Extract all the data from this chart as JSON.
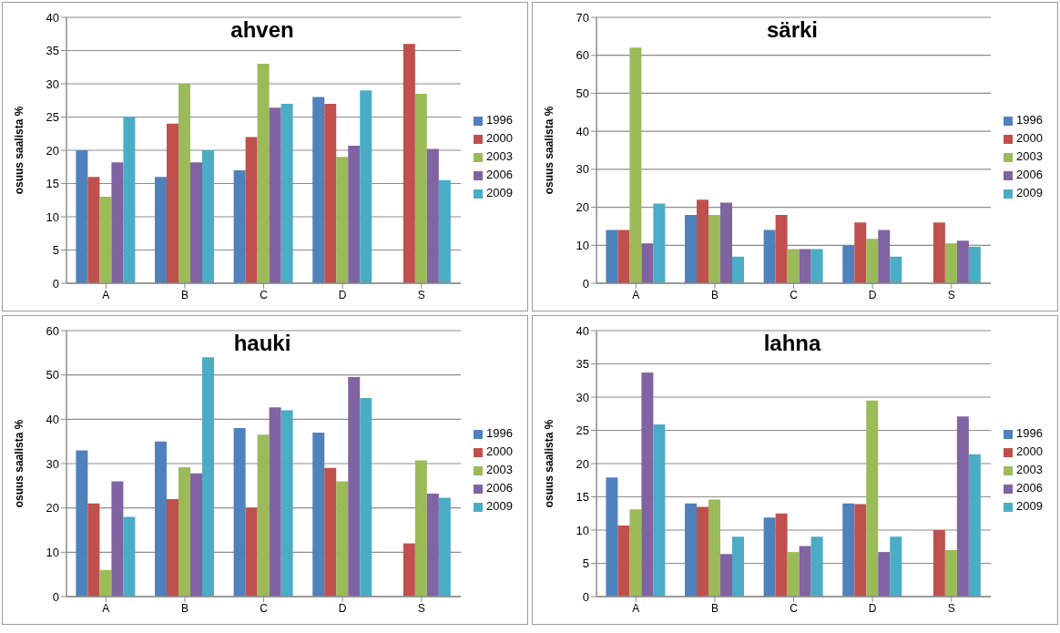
{
  "chart_data": [
    {
      "type": "bar",
      "title": "ahven",
      "ylabel": "osuus saalista  %",
      "categories": [
        "A",
        "B",
        "C",
        "D",
        "S"
      ],
      "ylim": [
        0,
        40
      ],
      "yticks": [
        0,
        5,
        10,
        15,
        20,
        25,
        30,
        35,
        40
      ],
      "grid": "y",
      "legend": "right",
      "series": [
        {
          "name": "1996",
          "color": "#4f81bd",
          "values": [
            20,
            16,
            17,
            28,
            null
          ]
        },
        {
          "name": "2000",
          "color": "#c0504d",
          "values": [
            16,
            24,
            22,
            27,
            36
          ]
        },
        {
          "name": "2003",
          "color": "#9bbb59",
          "values": [
            13,
            30,
            33,
            19,
            28.5
          ]
        },
        {
          "name": "2006",
          "color": "#8064a2",
          "values": [
            18.2,
            18.2,
            26.4,
            20.7,
            20.2
          ]
        },
        {
          "name": "2009",
          "color": "#4bacc6",
          "values": [
            25,
            20,
            27,
            29,
            15.5
          ]
        }
      ]
    },
    {
      "type": "bar",
      "title": "särki",
      "ylabel": "osuus saalista  %",
      "categories": [
        "A",
        "B",
        "C",
        "D",
        "S"
      ],
      "ylim": [
        0,
        70
      ],
      "yticks": [
        0,
        10,
        20,
        30,
        40,
        50,
        60,
        70
      ],
      "grid": "y",
      "legend": "right",
      "series": [
        {
          "name": "1996",
          "color": "#4f81bd",
          "values": [
            14,
            18,
            14,
            10,
            null
          ]
        },
        {
          "name": "2000",
          "color": "#c0504d",
          "values": [
            14,
            22,
            18,
            16,
            16
          ]
        },
        {
          "name": "2003",
          "color": "#9bbb59",
          "values": [
            62,
            18,
            9,
            11.7,
            10.5
          ]
        },
        {
          "name": "2006",
          "color": "#8064a2",
          "values": [
            10.5,
            21.2,
            9,
            14,
            11.2
          ]
        },
        {
          "name": "2009",
          "color": "#4bacc6",
          "values": [
            21,
            7,
            9,
            7,
            9.6
          ]
        }
      ]
    },
    {
      "type": "bar",
      "title": "hauki",
      "ylabel": "osuus saalista  %",
      "categories": [
        "A",
        "B",
        "C",
        "D",
        "S"
      ],
      "ylim": [
        0,
        60
      ],
      "yticks": [
        0,
        10,
        20,
        30,
        40,
        50,
        60
      ],
      "grid": "y",
      "legend": "right",
      "series": [
        {
          "name": "1996",
          "color": "#4f81bd",
          "values": [
            33,
            35,
            38,
            37,
            null
          ]
        },
        {
          "name": "2000",
          "color": "#c0504d",
          "values": [
            21,
            22,
            20,
            29,
            12
          ]
        },
        {
          "name": "2003",
          "color": "#9bbb59",
          "values": [
            6,
            29.2,
            36.5,
            26,
            30.7
          ]
        },
        {
          "name": "2006",
          "color": "#8064a2",
          "values": [
            26,
            27.8,
            42.7,
            49.5,
            23.2
          ]
        },
        {
          "name": "2009",
          "color": "#4bacc6",
          "values": [
            18,
            54,
            42,
            44.8,
            22.3
          ]
        }
      ]
    },
    {
      "type": "bar",
      "title": "lahna",
      "ylabel": "osuus saalista  %",
      "categories": [
        "A",
        "B",
        "C",
        "D",
        "S"
      ],
      "ylim": [
        0,
        40
      ],
      "yticks": [
        0,
        5,
        10,
        15,
        20,
        25,
        30,
        35,
        40
      ],
      "grid": "y",
      "legend": "right",
      "series": [
        {
          "name": "1996",
          "color": "#4f81bd",
          "values": [
            17.9,
            14,
            11.9,
            14,
            null
          ]
        },
        {
          "name": "2000",
          "color": "#c0504d",
          "values": [
            10.7,
            13.5,
            12.5,
            13.9,
            10
          ]
        },
        {
          "name": "2003",
          "color": "#9bbb59",
          "values": [
            13.1,
            14.6,
            6.7,
            29.5,
            7
          ]
        },
        {
          "name": "2006",
          "color": "#8064a2",
          "values": [
            33.7,
            6.4,
            7.6,
            6.7,
            27.1
          ]
        },
        {
          "name": "2009",
          "color": "#4bacc6",
          "values": [
            25.9,
            9,
            9,
            9,
            21.4
          ]
        }
      ]
    }
  ]
}
